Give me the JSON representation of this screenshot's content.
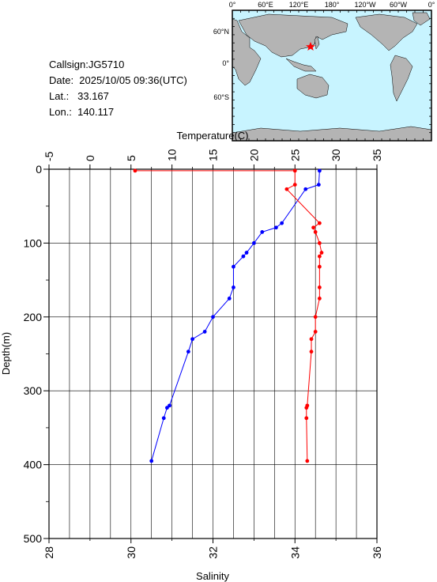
{
  "info": {
    "callsign": "Callsign:JG5710",
    "date": "Date:  2025/10/05 09:36(UTC)",
    "lat": "Lat.:   33.167",
    "lon": "Lon.:  140.117"
  },
  "map": {
    "top_ticks": [
      "0°",
      "60°E",
      "120°E",
      "180°",
      "120°W",
      "60°W",
      "0°"
    ],
    "left_ticks": [
      "60°N",
      "0°",
      "60°S"
    ],
    "colors": {
      "ocean": "#c8f4ff",
      "land": "#b4b4b4",
      "marker": "#ff0000"
    }
  },
  "chart_data": {
    "type": "line",
    "y_axis": {
      "label": "Depth(m)",
      "range": [
        0,
        500
      ],
      "reversed": true,
      "ticks": [
        "0",
        "100",
        "200",
        "300",
        "400",
        "500"
      ]
    },
    "x_axis_top": {
      "label": "Temperature(C)",
      "range": [
        -5,
        35
      ],
      "ticks": [
        "-5",
        "0",
        "5",
        "10",
        "15",
        "20",
        "25",
        "30",
        "35"
      ]
    },
    "x_axis_bottom": {
      "label": "Salinity",
      "range": [
        28,
        36
      ],
      "ticks": [
        "28",
        "30",
        "32",
        "34",
        "36"
      ]
    },
    "grid": true,
    "series": [
      {
        "name": "Temperature",
        "color": "#0000ff",
        "axis": "top",
        "points": [
          [
            28.0,
            2
          ],
          [
            27.9,
            21
          ],
          [
            26.3,
            27
          ],
          [
            23.4,
            73
          ],
          [
            22.7,
            79
          ],
          [
            21.0,
            85
          ],
          [
            20.0,
            100
          ],
          [
            19.1,
            113
          ],
          [
            18.7,
            118
          ],
          [
            17.5,
            132
          ],
          [
            17.5,
            160
          ],
          [
            17.0,
            175
          ],
          [
            15.0,
            200
          ],
          [
            14.0,
            220
          ],
          [
            12.5,
            230
          ],
          [
            12.0,
            247
          ],
          [
            9.7,
            320
          ],
          [
            9.4,
            323
          ],
          [
            9.0,
            337
          ],
          [
            7.5,
            395
          ]
        ]
      },
      {
        "name": "Salinity",
        "color": "#ff0000",
        "axis": "bottom",
        "points": [
          [
            30.1,
            2
          ],
          [
            34.0,
            2
          ],
          [
            34.0,
            21
          ],
          [
            33.8,
            27
          ],
          [
            34.6,
            73
          ],
          [
            34.45,
            79
          ],
          [
            34.5,
            85
          ],
          [
            34.6,
            100
          ],
          [
            34.65,
            113
          ],
          [
            34.6,
            118
          ],
          [
            34.6,
            132
          ],
          [
            34.6,
            160
          ],
          [
            34.6,
            175
          ],
          [
            34.5,
            200
          ],
          [
            34.5,
            220
          ],
          [
            34.4,
            230
          ],
          [
            34.4,
            247
          ],
          [
            34.3,
            320
          ],
          [
            34.28,
            323
          ],
          [
            34.28,
            337
          ],
          [
            34.3,
            395
          ]
        ]
      }
    ]
  }
}
